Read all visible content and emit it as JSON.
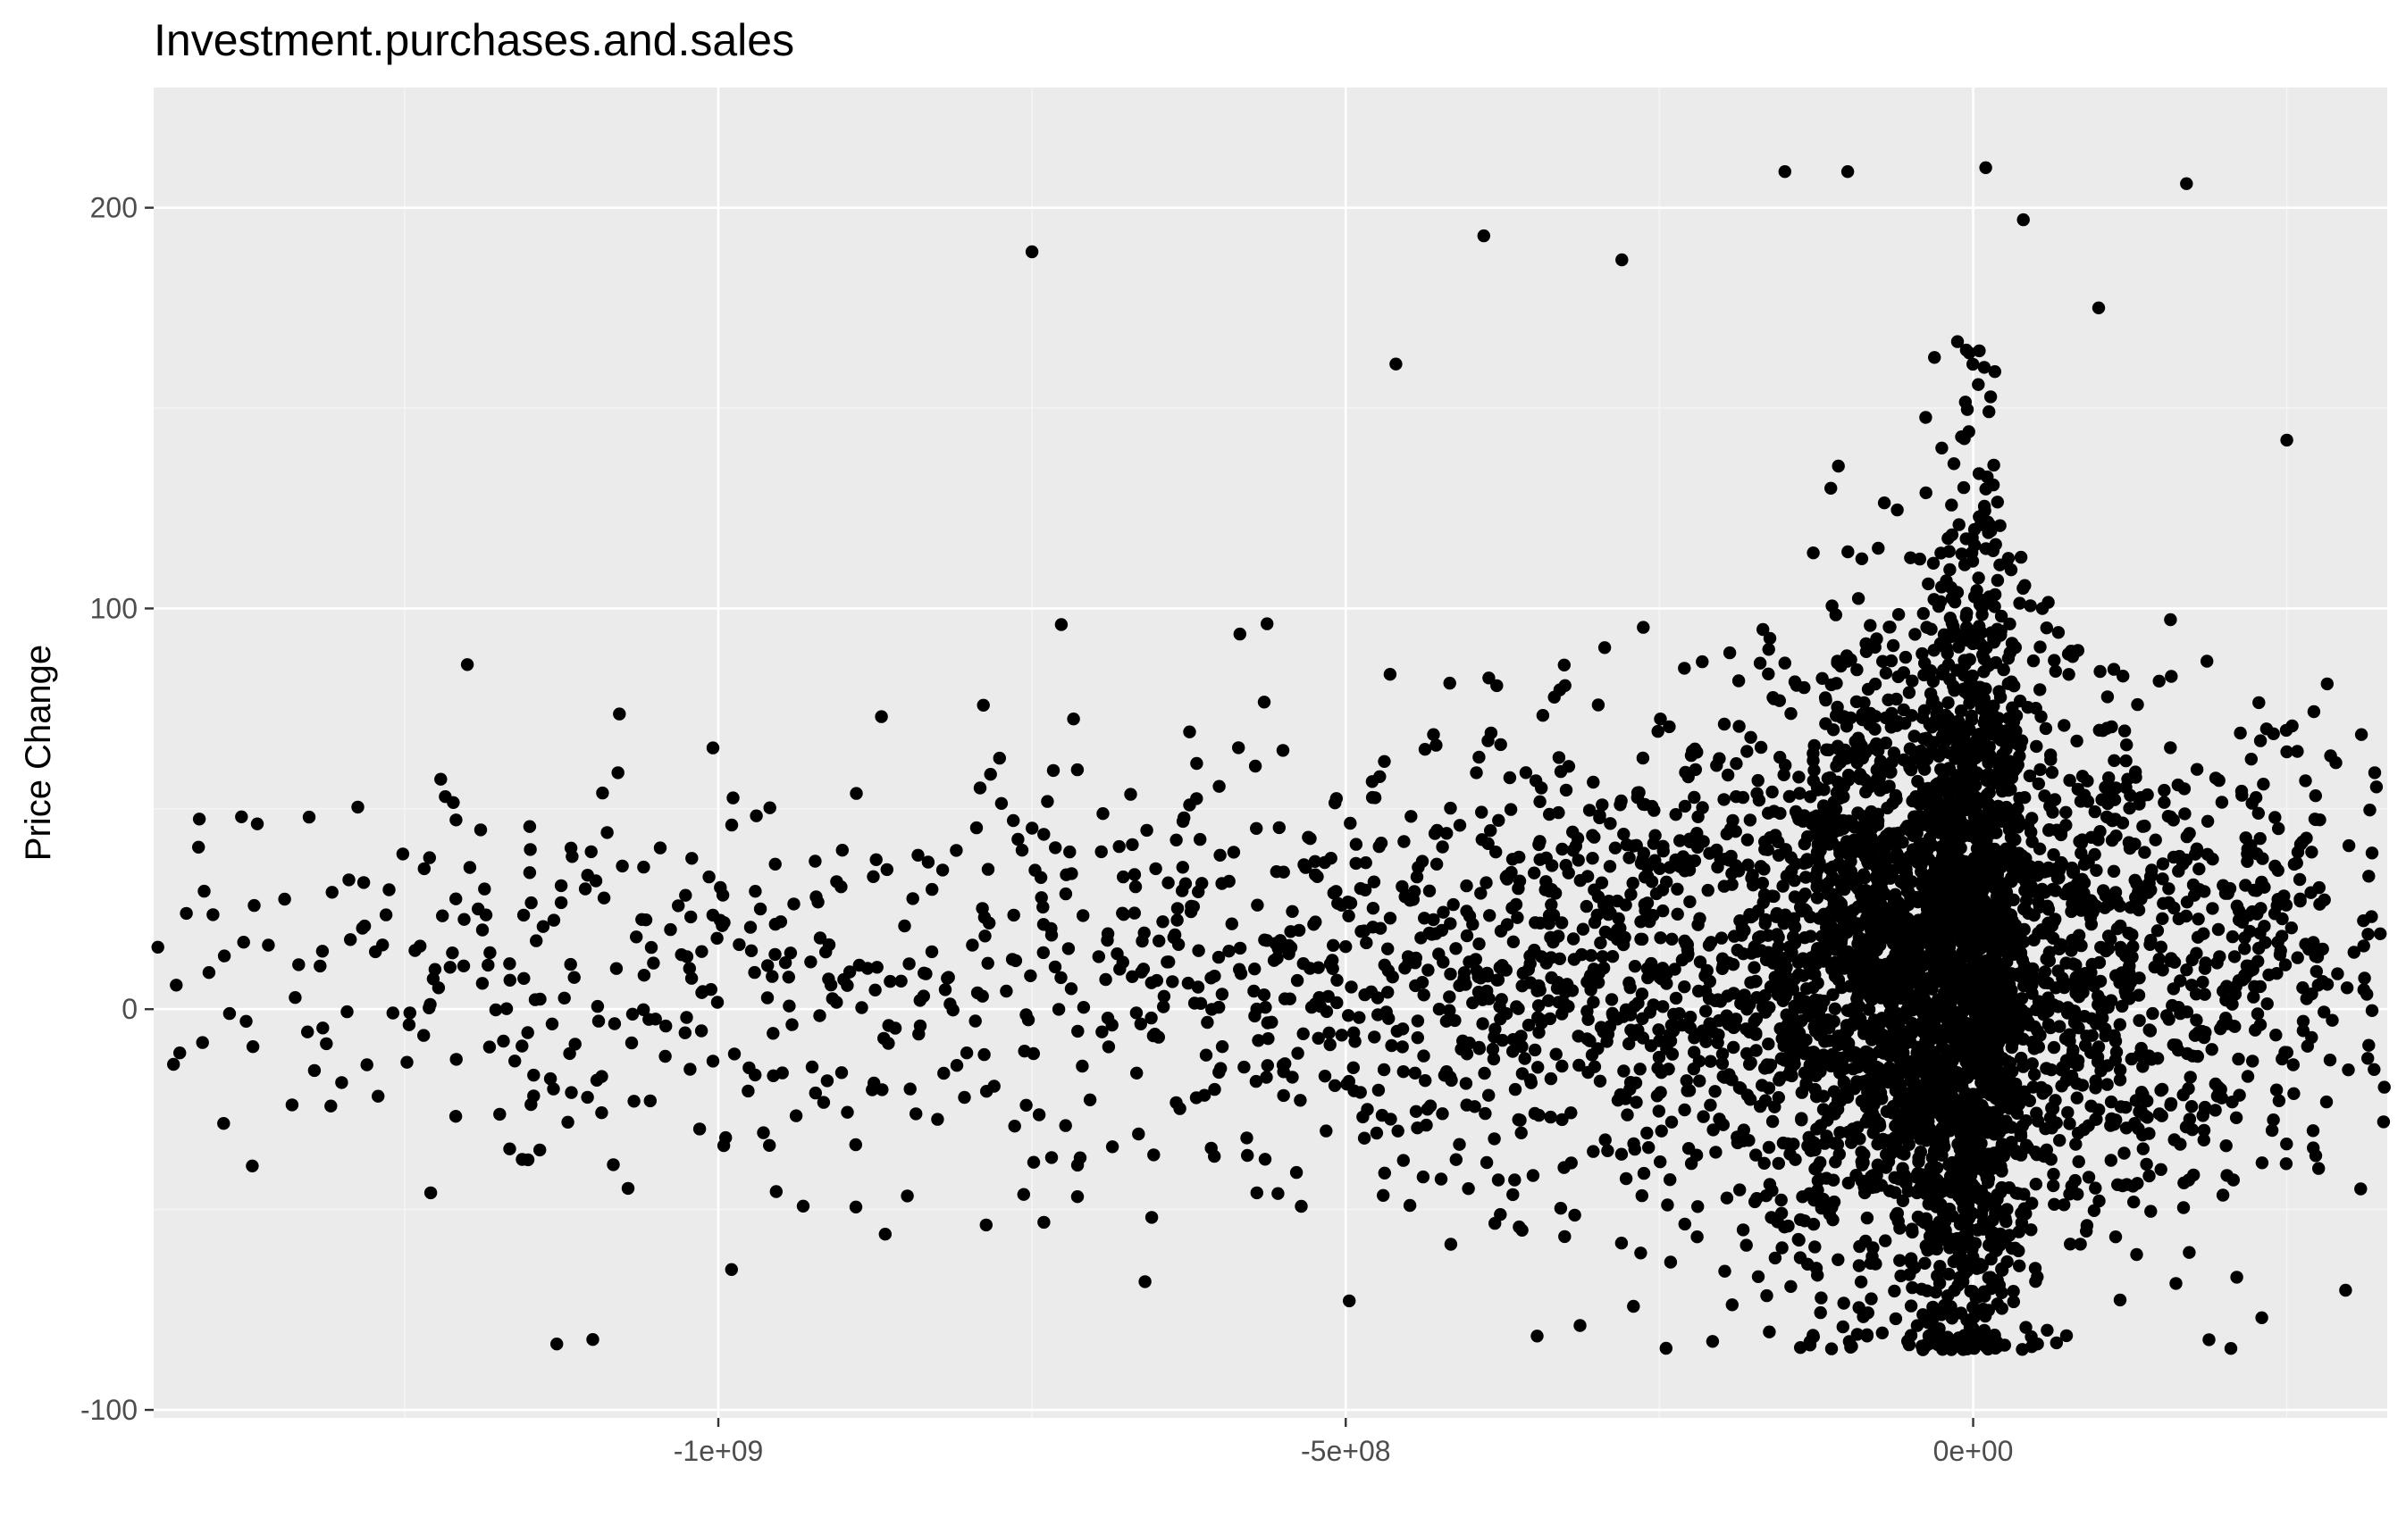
{
  "chart_data": {
    "type": "scatter",
    "title": "Investment.purchases.and.sales",
    "xlabel": "",
    "ylabel": "Price Change",
    "xlim": [
      -1450000000.0,
      330000000.0
    ],
    "ylim": [
      -102,
      230
    ],
    "x_ticks": [
      {
        "value": -1000000000.0,
        "label": "-1e+09"
      },
      {
        "value": -500000000.0,
        "label": "-5e+08"
      },
      {
        "value": 0,
        "label": "0e+00"
      }
    ],
    "y_ticks": [
      {
        "value": -100,
        "label": "-100"
      },
      {
        "value": 0,
        "label": "0"
      },
      {
        "value": 100,
        "label": "100"
      },
      {
        "value": 200,
        "label": "200"
      }
    ],
    "grid": true,
    "legend": "none",
    "colors": {
      "panel_background": "#ebebeb",
      "grid_major": "#ffffff",
      "grid_minor": "#f5f5f5",
      "point": "#000000"
    },
    "points_sample": {
      "x": [
        -750000000.0,
        -390000000.0,
        -280000000.0,
        -460000000.0,
        -150000000.0,
        -1200000000.0,
        -1080000000.0,
        -1380000000.0,
        -870000000.0,
        -660000000.0,
        170000000.0,
        250000000.0,
        320000000.0,
        230000000.0,
        -100000000.0,
        10000000.0,
        -40000000.0,
        40000000.0,
        -130000000.0,
        100000000.0
      ],
      "y": [
        189,
        193,
        187,
        161,
        209,
        86,
        59,
        48,
        73,
        -68,
        206,
        142,
        59,
        -77,
        209,
        210,
        -85,
        197,
        -83,
        175
      ]
    },
    "clusters": [
      {
        "x_center": -1200000000.0,
        "x_spread": 160000000.0,
        "y_center": 10,
        "y_spread": 28,
        "count": 140
      },
      {
        "x_center": -850000000.0,
        "x_spread": 180000000.0,
        "y_center": 8,
        "y_spread": 26,
        "count": 260
      },
      {
        "x_center": -500000000.0,
        "x_spread": 150000000.0,
        "y_center": 12,
        "y_spread": 28,
        "count": 380
      },
      {
        "x_center": -250000000.0,
        "x_spread": 120000000.0,
        "y_center": 10,
        "y_spread": 32,
        "count": 650
      },
      {
        "x_center": -60000000.0,
        "x_spread": 60000000.0,
        "y_center": 10,
        "y_spread": 40,
        "count": 1900
      },
      {
        "x_center": 0,
        "x_spread": 20000000.0,
        "y_center": 15,
        "y_spread": 55,
        "count": 1100
      },
      {
        "x_center": 80000000.0,
        "x_spread": 70000000.0,
        "y_center": 10,
        "y_spread": 35,
        "count": 700
      },
      {
        "x_center": 240000000.0,
        "x_spread": 50000000.0,
        "y_center": 10,
        "y_spread": 30,
        "count": 220
      }
    ]
  }
}
